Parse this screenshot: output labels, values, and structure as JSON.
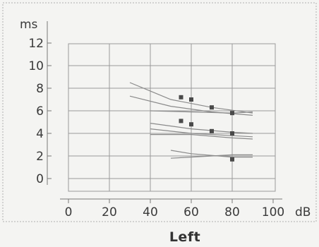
{
  "chart_data": {
    "type": "scatter",
    "title": "Left",
    "x_unit": "dB",
    "y_unit": "ms",
    "xlim": [
      0,
      100
    ],
    "ylim": [
      0,
      12
    ],
    "x_ticks": [
      "0",
      "20",
      "40",
      "60",
      "80",
      "100"
    ],
    "y_ticks": [
      "0",
      "2",
      "4",
      "6",
      "8",
      "10",
      "12"
    ],
    "grid": true,
    "series": [
      {
        "points": [
          {
            "x": 55,
            "y": 7.2
          },
          {
            "x": 60,
            "y": 7.0
          },
          {
            "x": 70,
            "y": 6.3
          },
          {
            "x": 80,
            "y": 5.8
          },
          {
            "x": 55,
            "y": 5.1
          },
          {
            "x": 60,
            "y": 4.8
          },
          {
            "x": 70,
            "y": 4.2
          },
          {
            "x": 80,
            "y": 4.0
          },
          {
            "x": 80,
            "y": 1.7
          }
        ]
      }
    ],
    "reference_curves": [
      {
        "points": [
          [
            30,
            8.5
          ],
          [
            50,
            7.0
          ],
          [
            70,
            6.3
          ],
          [
            90,
            5.8
          ]
        ]
      },
      {
        "points": [
          [
            30,
            7.3
          ],
          [
            50,
            6.4
          ],
          [
            70,
            5.9
          ],
          [
            90,
            5.6
          ]
        ]
      },
      {
        "points": [
          [
            40,
            6.0
          ],
          [
            60,
            5.9
          ],
          [
            80,
            5.8
          ],
          [
            90,
            5.9
          ]
        ]
      },
      {
        "points": [
          [
            40,
            4.9
          ],
          [
            60,
            4.4
          ],
          [
            80,
            4.1
          ],
          [
            90,
            4.0
          ]
        ]
      },
      {
        "points": [
          [
            40,
            4.4
          ],
          [
            60,
            4.0
          ],
          [
            80,
            3.8
          ],
          [
            90,
            3.7
          ]
        ]
      },
      {
        "points": [
          [
            40,
            3.9
          ],
          [
            60,
            3.9
          ],
          [
            80,
            3.6
          ],
          [
            90,
            3.5
          ]
        ]
      },
      {
        "points": [
          [
            50,
            2.5
          ],
          [
            60,
            2.2
          ],
          [
            80,
            1.9
          ],
          [
            90,
            1.9
          ]
        ]
      },
      {
        "points": [
          [
            50,
            1.8
          ],
          [
            60,
            1.9
          ],
          [
            80,
            2.1
          ],
          [
            90,
            2.1
          ]
        ]
      }
    ],
    "colors": {
      "background": "#f4f4f2",
      "grid": "#9a9a9a",
      "axis": "#777777",
      "curve": "#8a8a8a",
      "marker": "#4a4a4a",
      "text": "#3a3a3a"
    }
  }
}
